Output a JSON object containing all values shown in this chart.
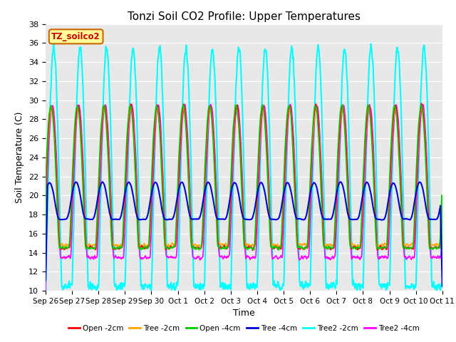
{
  "title": "Tonzi Soil CO2 Profile: Upper Temperatures",
  "ylabel": "Soil Temperature (C)",
  "xlabel": "Time",
  "ylim": [
    10,
    38
  ],
  "yticks": [
    10,
    12,
    14,
    16,
    18,
    20,
    22,
    24,
    26,
    28,
    30,
    32,
    34,
    36,
    38
  ],
  "xtick_labels": [
    "Sep 26",
    "Sep 27",
    "Sep 28",
    "Sep 29",
    "Sep 30",
    "Oct 1",
    "Oct 2",
    "Oct 3",
    "Oct 4",
    "Oct 5",
    "Oct 6",
    "Oct 7",
    "Oct 8",
    "Oct 9",
    "Oct 10",
    "Oct 11"
  ],
  "series": [
    {
      "label": "Open -2cm",
      "color": "#ff0000"
    },
    {
      "label": "Tree -2cm",
      "color": "#ffa500"
    },
    {
      "label": "Open -4cm",
      "color": "#00cc00"
    },
    {
      "label": "Tree -4cm",
      "color": "#0000dd"
    },
    {
      "label": "Tree2 -2cm",
      "color": "#00ffff"
    },
    {
      "label": "Tree2 -4cm",
      "color": "#ff00ff"
    }
  ],
  "legend_label": "TZ_soilco2",
  "legend_color": "#cc0000",
  "legend_bg": "#ffff99",
  "legend_border": "#cc6600",
  "plot_bg": "#e8e8e8",
  "fig_bg": "#ffffff",
  "n_days": 15,
  "samples_per_day": 96
}
